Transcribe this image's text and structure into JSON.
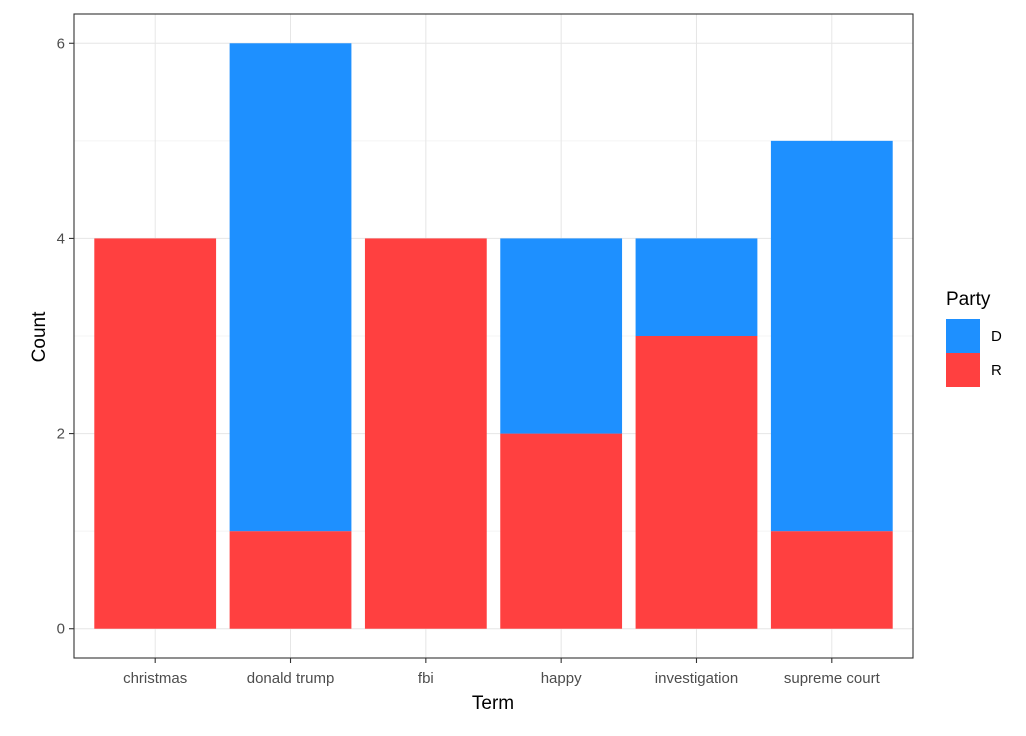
{
  "chart_data": {
    "type": "bar",
    "stacked": true,
    "title": "",
    "xlabel": "Term",
    "ylabel": "Count",
    "categories": [
      "christmas",
      "donald trump",
      "fbi",
      "happy",
      "investigation",
      "supreme court"
    ],
    "series": [
      {
        "name": "D",
        "color": "#1e90ff",
        "values": [
          0,
          5,
          0,
          2,
          1,
          4
        ]
      },
      {
        "name": "R",
        "color": "#ff4040",
        "values": [
          4,
          1,
          4,
          2,
          3,
          1
        ]
      }
    ],
    "stack_order_bottom_to_top": [
      "R",
      "D"
    ],
    "ylim": [
      -0.3,
      6.3
    ],
    "yticks": [
      0,
      2,
      4,
      6
    ],
    "grid": true,
    "legend": {
      "title": "Party",
      "position": "right",
      "entries": [
        "D",
        "R"
      ]
    }
  }
}
